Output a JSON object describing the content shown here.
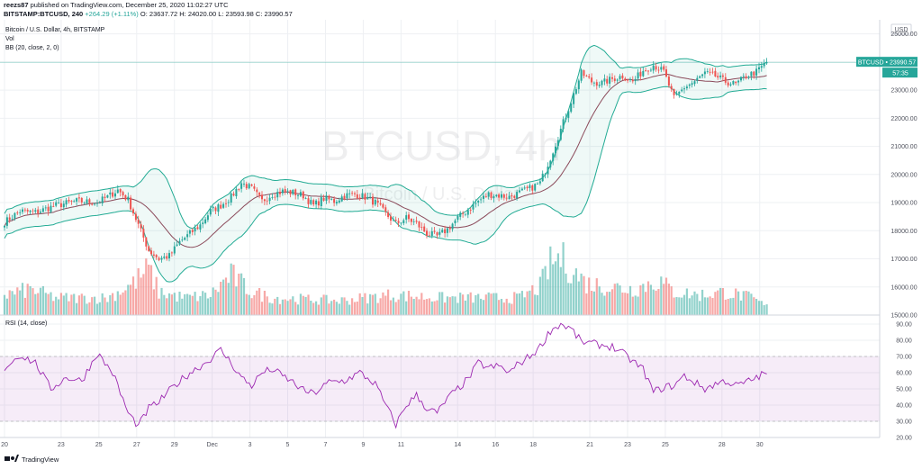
{
  "header": {
    "author": "reezs87",
    "published_text": "published on TradingView.com, December 25, 2020 11:02:27 UTC",
    "symbol_line": "BITSTAMP:BTCUSD, 240",
    "change": "+264.29 (+1.11%)",
    "ohlc": "O: 23637.72  H: 24020.00  L: 23593.98  C: 23990.57"
  },
  "legend": {
    "title": "Bitcoin / U.S. Dollar, 4h, BITSTAMP",
    "vol": "Vol",
    "bb": "BB (20, close, 2, 0)",
    "rsi": "RSI (14, close)"
  },
  "watermark": {
    "symbol": "BTCUSD, 4h",
    "name": "Bitcoin / U.S. Dollar"
  },
  "price_axis": {
    "currency": "USD",
    "ticks": [
      "25000.00",
      "24000.00",
      "23000.00",
      "22000.00",
      "21000.00",
      "20000.00",
      "19000.00",
      "18000.00",
      "17000.00",
      "16000.00",
      "15000.00"
    ],
    "last_label": "BTCUSD • 23990.57",
    "countdown": "57:35"
  },
  "rsi_axis": {
    "ticks": [
      "90.00",
      "80.00",
      "70.00",
      "60.00",
      "50.00",
      "40.00",
      "30.00",
      "20.00"
    ]
  },
  "time_axis": {
    "ticks": [
      "20",
      "23",
      "25",
      "27",
      "29",
      "Dec",
      "3",
      "5",
      "7",
      "9",
      "11",
      "14",
      "16",
      "18",
      "21",
      "23",
      "25",
      "28",
      "30"
    ]
  },
  "footer": {
    "brand": "TradingView"
  },
  "colors": {
    "up": "#26a69a",
    "down": "#ef5350",
    "bb_band": "#22ab94",
    "bb_mid": "#8b4a5a",
    "rsi": "#9c27b0",
    "rsi_band": "#9c27b0"
  },
  "chart_data": {
    "type": "candlestick",
    "price_ylim": [
      15000,
      25500
    ],
    "rsi_ylim": [
      20,
      95
    ],
    "rsi_levels": [
      70,
      30
    ],
    "last_price": 23990.57,
    "anchors": {
      "close_path": [
        [
          0,
          18300
        ],
        [
          6,
          18700
        ],
        [
          12,
          18650
        ],
        [
          20,
          18900
        ],
        [
          28,
          19050
        ],
        [
          36,
          19000
        ],
        [
          40,
          19200
        ],
        [
          44,
          19450
        ],
        [
          48,
          19100
        ],
        [
          52,
          18200
        ],
        [
          56,
          17300
        ],
        [
          60,
          17000
        ],
        [
          64,
          17100
        ],
        [
          68,
          17600
        ],
        [
          72,
          17900
        ],
        [
          76,
          18200
        ],
        [
          80,
          18700
        ],
        [
          84,
          18900
        ],
        [
          88,
          19200
        ],
        [
          92,
          19700
        ],
        [
          96,
          19500
        ],
        [
          100,
          19050
        ],
        [
          104,
          19300
        ],
        [
          108,
          19400
        ],
        [
          112,
          19350
        ],
        [
          116,
          19250
        ],
        [
          120,
          18900
        ],
        [
          124,
          19150
        ],
        [
          128,
          19050
        ],
        [
          132,
          19250
        ],
        [
          136,
          19300
        ],
        [
          140,
          19200
        ],
        [
          144,
          19000
        ],
        [
          148,
          18600
        ],
        [
          152,
          18250
        ],
        [
          156,
          18450
        ],
        [
          160,
          18250
        ],
        [
          164,
          17900
        ],
        [
          168,
          17800
        ],
        [
          172,
          18050
        ],
        [
          176,
          18450
        ],
        [
          180,
          18750
        ],
        [
          184,
          19050
        ],
        [
          188,
          19300
        ],
        [
          192,
          19250
        ],
        [
          196,
          19200
        ],
        [
          200,
          19350
        ],
        [
          204,
          19500
        ],
        [
          208,
          19700
        ],
        [
          212,
          20600
        ],
        [
          216,
          21600
        ],
        [
          220,
          22600
        ],
        [
          224,
          23600
        ],
        [
          228,
          23300
        ],
        [
          232,
          23250
        ],
        [
          236,
          23400
        ],
        [
          240,
          23500
        ],
        [
          244,
          23300
        ],
        [
          248,
          23700
        ],
        [
          252,
          23900
        ],
        [
          256,
          23650
        ],
        [
          260,
          22700
        ],
        [
          264,
          23100
        ],
        [
          268,
          23300
        ],
        [
          272,
          23600
        ],
        [
          276,
          23500
        ],
        [
          280,
          23300
        ],
        [
          284,
          23200
        ],
        [
          288,
          23500
        ],
        [
          292,
          23650
        ],
        [
          296,
          23990.57
        ]
      ],
      "rsi_path": [
        [
          0,
          63
        ],
        [
          6,
          71
        ],
        [
          12,
          66
        ],
        [
          18,
          50
        ],
        [
          24,
          57
        ],
        [
          30,
          55
        ],
        [
          36,
          72
        ],
        [
          42,
          60
        ],
        [
          48,
          35
        ],
        [
          52,
          27
        ],
        [
          56,
          38
        ],
        [
          60,
          42
        ],
        [
          66,
          52
        ],
        [
          72,
          60
        ],
        [
          78,
          66
        ],
        [
          84,
          74
        ],
        [
          88,
          66
        ],
        [
          92,
          57
        ],
        [
          96,
          52
        ],
        [
          100,
          60
        ],
        [
          104,
          62
        ],
        [
          108,
          58
        ],
        [
          112,
          54
        ],
        [
          116,
          49
        ],
        [
          120,
          47
        ],
        [
          126,
          54
        ],
        [
          132,
          55
        ],
        [
          138,
          60
        ],
        [
          144,
          53
        ],
        [
          148,
          40
        ],
        [
          152,
          28
        ],
        [
          156,
          40
        ],
        [
          160,
          46
        ],
        [
          164,
          38
        ],
        [
          168,
          35
        ],
        [
          172,
          44
        ],
        [
          176,
          50
        ],
        [
          180,
          56
        ],
        [
          184,
          66
        ],
        [
          188,
          63
        ],
        [
          192,
          64
        ],
        [
          196,
          60
        ],
        [
          200,
          66
        ],
        [
          204,
          70
        ],
        [
          208,
          76
        ],
        [
          212,
          86
        ],
        [
          216,
          90
        ],
        [
          220,
          87
        ],
        [
          224,
          79
        ],
        [
          228,
          78
        ],
        [
          232,
          77
        ],
        [
          236,
          76
        ],
        [
          240,
          72
        ],
        [
          244,
          67
        ],
        [
          248,
          62
        ],
        [
          252,
          48
        ],
        [
          256,
          51
        ],
        [
          260,
          52
        ],
        [
          264,
          58
        ],
        [
          268,
          54
        ],
        [
          272,
          50
        ],
        [
          276,
          53
        ],
        [
          280,
          55
        ],
        [
          284,
          52
        ],
        [
          288,
          54
        ],
        [
          292,
          57
        ],
        [
          296,
          60
        ]
      ],
      "volume_path": [
        [
          0,
          0.35
        ],
        [
          10,
          0.45
        ],
        [
          20,
          0.3
        ],
        [
          40,
          0.3
        ],
        [
          50,
          0.55
        ],
        [
          56,
          0.8
        ],
        [
          60,
          0.4
        ],
        [
          70,
          0.3
        ],
        [
          80,
          0.35
        ],
        [
          88,
          0.7
        ],
        [
          96,
          0.4
        ],
        [
          104,
          0.3
        ],
        [
          130,
          0.25
        ],
        [
          150,
          0.35
        ],
        [
          170,
          0.3
        ],
        [
          200,
          0.3
        ],
        [
          208,
          0.5
        ],
        [
          212,
          0.9
        ],
        [
          216,
          1.0
        ],
        [
          220,
          0.8
        ],
        [
          226,
          0.55
        ],
        [
          234,
          0.5
        ],
        [
          244,
          0.45
        ],
        [
          254,
          0.6
        ],
        [
          260,
          0.4
        ],
        [
          270,
          0.35
        ],
        [
          280,
          0.4
        ],
        [
          290,
          0.3
        ],
        [
          296,
          0.15
        ]
      ]
    }
  }
}
